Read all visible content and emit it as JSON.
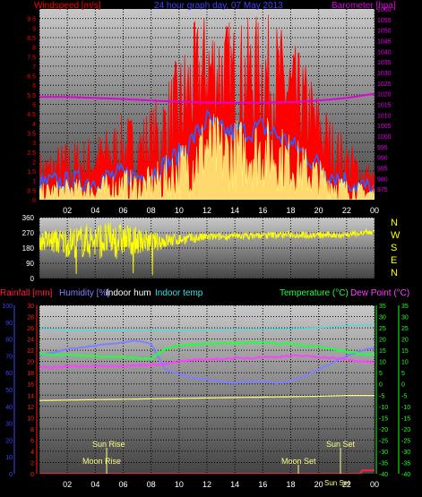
{
  "palette": {
    "background": "#000000",
    "plot_top": "#c8c8c8",
    "plot_bottom": "#444444",
    "grid": "#000000",
    "windspeed": "#ff0000",
    "windgust_avg": "#3060ff",
    "windspeed_avg": "#ffff80",
    "barometer": "#e000e0",
    "direction": "#ffff00",
    "rainfall": "#ff2040",
    "humidity": "#8080ff",
    "indoor_hum": "#ffffff",
    "indoor_temp": "#40e0e0",
    "temperature": "#20ff40",
    "dew_point": "#ff40ff",
    "light": "#ffff80",
    "blue_axis": "#4040ff",
    "green_axis": "#20ff20",
    "red_axis": "#ff2020"
  },
  "chart_data": [
    {
      "type": "line",
      "title": "24 hour graph day, 07 May 2013",
      "ylabel_left": "Windspeed [m/s]",
      "ylabel_right": "Barometer [hpa]",
      "x_ticks": [
        "02",
        "04",
        "06",
        "08",
        "10",
        "12",
        "14",
        "16",
        "18",
        "20",
        "22",
        "00"
      ],
      "x_range": [
        0,
        24
      ],
      "ylim_left": [
        0,
        10
      ],
      "y_ticks_left": [
        "0",
        "0.5",
        "1",
        "1.5",
        "2",
        "2.5",
        "3",
        "3.5",
        "4",
        "4.5",
        "5",
        "5.5",
        "6",
        "6.5",
        "7",
        "7.5",
        "8",
        "8.5",
        "9",
        "9.5"
      ],
      "ylim_right": [
        970,
        1060
      ],
      "y_ticks_right": [
        "975",
        "980",
        "985",
        "990",
        "995",
        "1000",
        "1005",
        "1010",
        "1015",
        "1020",
        "1025",
        "1030",
        "1035",
        "1040",
        "1045",
        "1050",
        "1055",
        "1060"
      ],
      "grid": true,
      "series": [
        {
          "name": "Windspeed",
          "axis": "left",
          "style": "spiky",
          "x": [
            0,
            1,
            2,
            3,
            4,
            5,
            6,
            7,
            8,
            9,
            10,
            11,
            12,
            13,
            14,
            15,
            16,
            17,
            18,
            19,
            20,
            21,
            22,
            23,
            24
          ],
          "y": [
            1.2,
            1.4,
            1.6,
            1.8,
            2.0,
            2.3,
            2.6,
            2.5,
            2.8,
            3.5,
            4.5,
            5.8,
            6.8,
            6.5,
            6.2,
            6.3,
            6.4,
            6.1,
            5.5,
            4.8,
            3.5,
            2.5,
            1.8,
            1.3,
            0.8
          ],
          "spike": [
            1.5,
            1.5,
            1.6,
            1.5,
            1.5,
            1.6,
            2.0,
            2.0,
            2.2,
            2.8,
            3.2,
            3.5,
            3.2,
            3.3,
            3.2,
            3.3,
            3.5,
            3.4,
            3.0,
            2.6,
            2.2,
            1.8,
            1.5,
            1.2,
            1.0
          ]
        },
        {
          "name": "Wind average",
          "axis": "left",
          "style": "line",
          "x": [
            0,
            1,
            2,
            3,
            4,
            5,
            6,
            7,
            8,
            9,
            10,
            11,
            12,
            13,
            14,
            15,
            16,
            17,
            18,
            19,
            20,
            21,
            22,
            23,
            24
          ],
          "y": [
            0.8,
            0.9,
            0.9,
            1.0,
            1.0,
            1.2,
            1.3,
            1.2,
            1.4,
            1.8,
            2.4,
            3.2,
            4.2,
            3.6,
            3.5,
            3.6,
            3.8,
            3.4,
            2.9,
            2.4,
            1.8,
            1.3,
            1.0,
            0.7,
            0.5
          ]
        },
        {
          "name": "Windspeed low",
          "axis": "left",
          "style": "spiky",
          "x": [
            0,
            1,
            2,
            3,
            4,
            5,
            6,
            7,
            8,
            9,
            10,
            11,
            12,
            13,
            14,
            15,
            16,
            17,
            18,
            19,
            20,
            21,
            22,
            23,
            24
          ],
          "y": [
            0.3,
            0.4,
            0.5,
            0.5,
            0.5,
            0.6,
            0.7,
            0.6,
            0.8,
            1.0,
            1.5,
            2.0,
            2.8,
            2.4,
            2.4,
            2.5,
            2.5,
            2.3,
            1.9,
            1.5,
            1.1,
            0.8,
            0.5,
            0.4,
            0.3
          ],
          "spike": [
            0.5,
            0.6,
            0.6,
            0.6,
            0.7,
            0.8,
            1.0,
            0.9,
            1.0,
            1.3,
            1.5,
            1.8,
            2.0,
            2.0,
            1.9,
            2.0,
            2.0,
            1.9,
            1.6,
            1.4,
            1.1,
            0.9,
            0.6,
            0.5,
            0.4
          ]
        },
        {
          "name": "Barometer",
          "axis": "right",
          "style": "line",
          "x": [
            0,
            2,
            4,
            6,
            8,
            10,
            12,
            14,
            16,
            18,
            20,
            22,
            24
          ],
          "y": [
            1018.5,
            1018.5,
            1018.0,
            1017.5,
            1016.8,
            1016.2,
            1015.8,
            1015.8,
            1015.8,
            1016.0,
            1016.8,
            1018.0,
            1020.0
          ]
        }
      ]
    },
    {
      "type": "line",
      "ylabel_right_letters": [
        "N",
        "W",
        "S",
        "E",
        "N"
      ],
      "x_range": [
        0,
        24
      ],
      "ylim": [
        0,
        360
      ],
      "y_ticks": [
        "0",
        "90",
        "180",
        "270",
        "360"
      ],
      "grid": true,
      "series": [
        {
          "name": "Wind direction",
          "style": "noisy",
          "x": [
            0,
            2,
            4,
            6,
            8,
            10,
            12,
            14,
            16,
            18,
            20,
            22,
            24
          ],
          "y": [
            225,
            215,
            225,
            230,
            215,
            230,
            245,
            250,
            255,
            260,
            255,
            260,
            275
          ],
          "noise": [
            60,
            90,
            110,
            100,
            60,
            35,
            25,
            20,
            20,
            20,
            20,
            20,
            18
          ]
        }
      ]
    },
    {
      "type": "line",
      "legend": [
        "Rainfall [mm]",
        "Humidity [%]",
        "Indoor hum",
        "Indoor temp",
        "Temperature (°C)",
        "Dew Point (°C)"
      ],
      "x_ticks": [
        "02",
        "04",
        "06",
        "08",
        "10",
        "12",
        "14",
        "16",
        "18",
        "20",
        "22",
        "00"
      ],
      "x_range": [
        0,
        24
      ],
      "grid": true,
      "axes": {
        "humidity": {
          "range": [
            0,
            100
          ],
          "ticks": [
            "0",
            "10",
            "20",
            "30",
            "40",
            "50",
            "60",
            "70",
            "80",
            "90",
            "100"
          ]
        },
        "rainfall": {
          "range": [
            0,
            30
          ],
          "ticks": [
            "0",
            "2",
            "4",
            "6",
            "8",
            "10",
            "12",
            "14",
            "16",
            "18",
            "20",
            "22",
            "24",
            "26",
            "28",
            "30"
          ]
        },
        "temperature": {
          "range": [
            -40,
            35
          ],
          "ticks": [
            "-40",
            "-35",
            "-30",
            "-25",
            "-20",
            "-15",
            "-10",
            "-5",
            "0",
            "5",
            "10",
            "15",
            "20",
            "25",
            "30",
            "35"
          ]
        }
      },
      "series": [
        {
          "name": "Indoor temp",
          "axis": "temperature",
          "x": [
            0,
            2,
            4,
            6,
            8,
            10,
            12,
            14,
            16,
            18,
            20,
            22,
            24
          ],
          "y": [
            24.5,
            24.0,
            24.0,
            24.0,
            23.8,
            24.0,
            24.0,
            24.2,
            24.3,
            24.5,
            25.0,
            26.0,
            26.5
          ]
        },
        {
          "name": "Humidity [%]",
          "axis": "humidity",
          "x": [
            0,
            1,
            2,
            3,
            4,
            5,
            6,
            7,
            8,
            9,
            10,
            11,
            12,
            13,
            14,
            15,
            16,
            17,
            18,
            19,
            20,
            21,
            22,
            23,
            24
          ],
          "y": [
            70,
            72,
            74,
            75,
            76,
            77,
            78,
            79,
            77,
            62,
            59,
            57,
            56,
            55,
            54,
            55,
            55,
            54,
            55,
            58,
            62,
            66,
            70,
            73,
            75
          ]
        },
        {
          "name": "Temperature (°C)",
          "axis": "temperature",
          "x": [
            0,
            1,
            2,
            3,
            4,
            5,
            6,
            7,
            8,
            9,
            10,
            11,
            12,
            13,
            14,
            15,
            16,
            17,
            18,
            19,
            20,
            21,
            22,
            23,
            24
          ],
          "y": [
            13.5,
            13.0,
            13.0,
            12.5,
            12.5,
            12.0,
            12.0,
            11.5,
            11.2,
            15.5,
            17.0,
            17.5,
            18.0,
            18.2,
            18.0,
            18.3,
            18.5,
            18.0,
            18.0,
            17.0,
            16.5,
            15.5,
            14.5,
            13.5,
            13.0
          ]
        },
        {
          "name": "Dew Point (°C)",
          "axis": "temperature",
          "x": [
            0,
            1,
            2,
            3,
            4,
            5,
            6,
            7,
            8,
            9,
            10,
            11,
            12,
            13,
            14,
            15,
            16,
            17,
            18,
            19,
            20,
            21,
            22,
            23,
            24
          ],
          "y": [
            7.5,
            7.5,
            7.8,
            8.0,
            8.0,
            8.0,
            8.0,
            8.2,
            8.5,
            9.0,
            10.0,
            10.5,
            11.0,
            11.0,
            11.5,
            11.5,
            12.0,
            12.0,
            12.5,
            12.5,
            12.0,
            11.5,
            11.0,
            10.0,
            9.5
          ]
        },
        {
          "name": "Indoor hum",
          "axis": "humidity",
          "x": [
            0,
            4,
            8,
            12,
            16,
            20,
            22,
            24
          ],
          "y": [
            43.5,
            44.0,
            44.5,
            45.0,
            45.5,
            46.0,
            46.5,
            46.5
          ]
        },
        {
          "name": "Rainfall [mm]",
          "axis": "rainfall",
          "x": [
            0,
            23,
            23.01,
            24
          ],
          "y": [
            0,
            0,
            0.6,
            0.6
          ]
        }
      ],
      "annotations": [
        "Sun Rise",
        "Moon Rise",
        "Moon Set",
        "Sun Set",
        "Sun Set"
      ]
    }
  ]
}
